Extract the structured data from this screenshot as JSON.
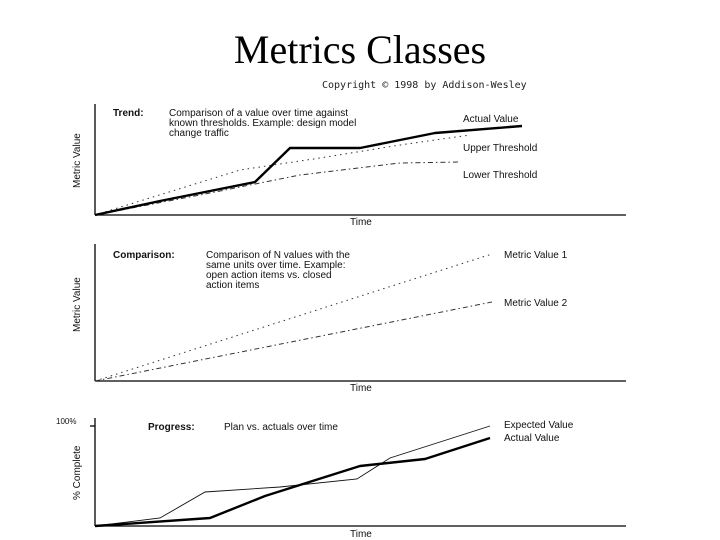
{
  "title": "Metrics Classes",
  "copyright": "Copyright © 1998 by Addison-Wesley",
  "panels": {
    "trend": {
      "heading": "Trend:",
      "description": [
        "Comparison of a value over time against",
        "known thresholds. Example: design model",
        "change traffic"
      ],
      "y_axis_label": "Metric Value",
      "x_axis_label": "Time",
      "series": {
        "actual": "Actual Value",
        "upper": "Upper Threshold",
        "lower": "Lower Threshold"
      }
    },
    "comparison": {
      "heading": "Comparison:",
      "description": [
        "Comparison of N values with the",
        "same units over time. Example:",
        "open action items vs. closed",
        "action items"
      ],
      "y_axis_label": "Metric Value",
      "x_axis_label": "Time",
      "series": {
        "value1": "Metric Value 1",
        "value2": "Metric Value 2"
      }
    },
    "progress": {
      "heading": "Progress:",
      "description": [
        "Plan vs. actuals over time"
      ],
      "y_axis_label": "% Complete",
      "y_top_tick": "100%",
      "x_axis_label": "Time",
      "series": {
        "expected": "Expected Value",
        "actual": "Actual Value"
      }
    }
  }
}
